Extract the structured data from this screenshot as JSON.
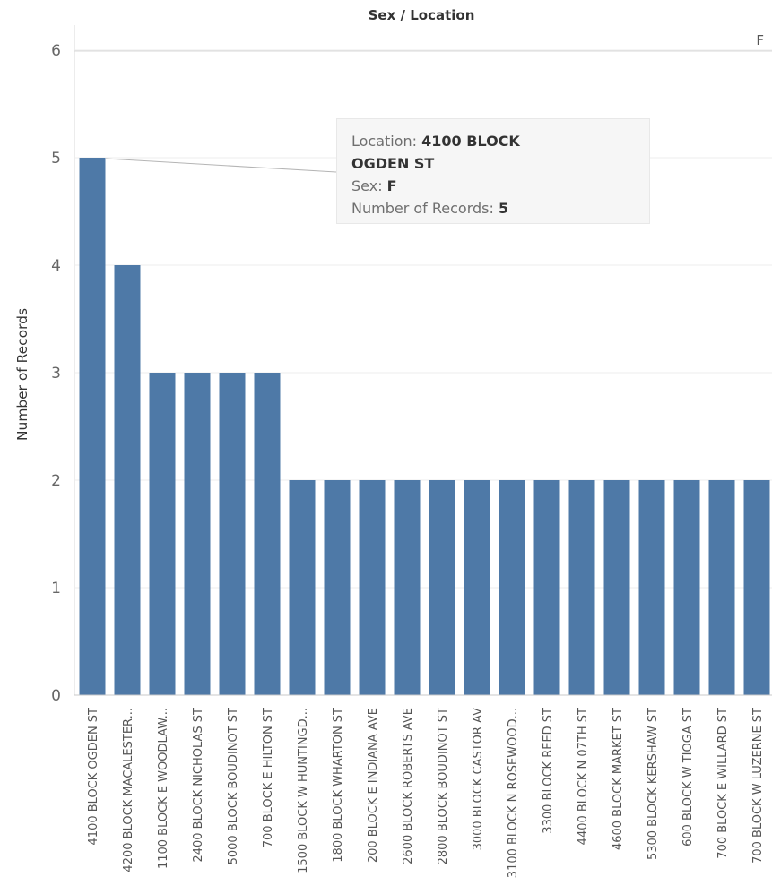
{
  "chart_data": {
    "type": "bar",
    "title": "Sex / Location",
    "column_header": "F",
    "ylabel": "Number of Records",
    "xlabel": "",
    "ylim": [
      0,
      6
    ],
    "yticks": [
      "0",
      "1",
      "2",
      "3",
      "4",
      "5",
      "6"
    ],
    "grid": true,
    "bar_color": "#4e79a7",
    "categories": [
      "4100 BLOCK OGDEN ST",
      "4200 BLOCK MACALESTER...",
      "1100 BLOCK E WOODLAW...",
      "2400 BLOCK NICHOLAS ST",
      "5000 BLOCK BOUDINOT ST",
      "700 BLOCK E HILTON ST",
      "1500 BLOCK W HUNTINGD...",
      "1800 BLOCK WHARTON ST",
      "200 BLOCK E INDIANA AVE",
      "2600 BLOCK ROBERTS AVE",
      "2800 BLOCK BOUDINOT ST",
      "3000 BLOCK CASTOR AV",
      "3100 BLOCK N ROSEWOOD...",
      "3300 BLOCK REED ST",
      "4400 BLOCK N 07TH ST",
      "4600 BLOCK MARKET ST",
      "5300 BLOCK KERSHAW ST",
      "600 BLOCK W TIOGA ST",
      "700 BLOCK E WILLARD ST",
      "700 BLOCK W LUZERNE ST"
    ],
    "values": [
      5,
      4,
      3,
      3,
      3,
      3,
      2,
      2,
      2,
      2,
      2,
      2,
      2,
      2,
      2,
      2,
      2,
      2,
      2,
      2
    ]
  },
  "tooltip": {
    "location_label": "Location:",
    "location_value_line1": "4100 BLOCK",
    "location_value_line2": "OGDEN ST",
    "sex_label": "Sex:",
    "sex_value": "F",
    "records_label": "Number of Records:",
    "records_value": "5"
  }
}
